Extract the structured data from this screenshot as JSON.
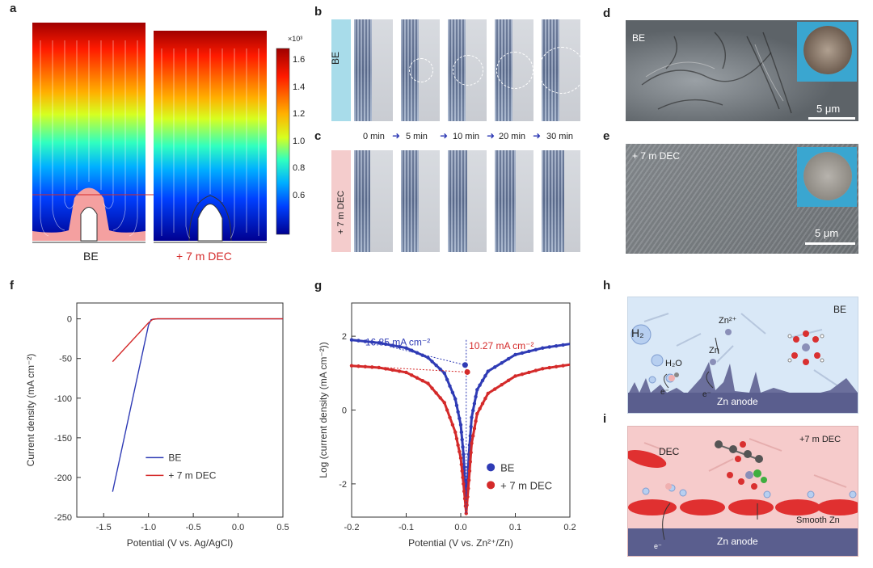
{
  "panels": {
    "a": "a",
    "b": "b",
    "c": "c",
    "d": "d",
    "e": "e",
    "f": "f",
    "g": "g",
    "h": "h",
    "i": "i"
  },
  "panel_a": {
    "colorbar_multiplier": "×10³",
    "colorbar_ticks": [
      "1.6",
      "1.4",
      "1.2",
      "1.0",
      "0.8",
      "0.6"
    ],
    "labels": {
      "left": "BE",
      "right": "+ 7 m DEC"
    },
    "colors": {
      "be": "#2f3bb5",
      "dec": "#d42a2a"
    }
  },
  "panel_bc": {
    "row_b_label": "BE",
    "row_c_label": "+ 7 m DEC",
    "times": [
      "0 min",
      "5 min",
      "10 min",
      "20 min",
      "30 min"
    ]
  },
  "panel_de": {
    "d_label": "BE",
    "e_label": "+ 7 m DEC",
    "scale_d": "5 μm",
    "scale_e": "5 μm"
  },
  "chart_data": [
    {
      "type": "line",
      "panel": "f",
      "xlabel": "Potential (V vs. Ag/AgCl)",
      "ylabel": "Current density (mA cm⁻²)",
      "xlim": [
        -1.8,
        0.5
      ],
      "ylim": [
        -250,
        20
      ],
      "xticks": [
        "-1.5",
        "-1.0",
        "-0.5",
        "0.0",
        "0.5"
      ],
      "yticks": [
        "0",
        "-50",
        "-100",
        "-150",
        "-200",
        "-250"
      ],
      "legend_position": "bottom-right",
      "series": [
        {
          "name": "BE",
          "color": "#2f3bb5",
          "points": [
            [
              -1.4,
              -218
            ],
            [
              -1.0,
              -8
            ],
            [
              -0.97,
              -1
            ],
            [
              -0.9,
              0
            ],
            [
              0.5,
              0
            ]
          ]
        },
        {
          "name": "+ 7 m DEC",
          "color": "#d42a2a",
          "points": [
            [
              -1.4,
              -54
            ],
            [
              -1.0,
              -5
            ],
            [
              -0.95,
              -0.5
            ],
            [
              -0.9,
              0
            ],
            [
              0.5,
              0
            ]
          ]
        }
      ]
    },
    {
      "type": "line",
      "panel": "g",
      "xlabel": "Potential (V vs. Zn²⁺/Zn)",
      "ylabel": "Log (current density (mA cm⁻²))",
      "xlim": [
        -0.2,
        0.2
      ],
      "ylim": [
        -2.9,
        2.9
      ],
      "xticks": [
        "-0.2",
        "-0.1",
        "0.0",
        "0.1",
        "0.2"
      ],
      "yticks": [
        "2",
        "0",
        "-2"
      ],
      "legend_position": "bottom-right",
      "annotations": [
        {
          "text": "16.85 mA cm⁻²",
          "color": "#2f3bb5"
        },
        {
          "text": "10.27 mA cm⁻²",
          "color": "#d42a2a"
        }
      ],
      "series": [
        {
          "name": "BE",
          "color": "#2f3bb5",
          "points": [
            [
              -0.2,
              1.9
            ],
            [
              -0.15,
              1.82
            ],
            [
              -0.1,
              1.68
            ],
            [
              -0.06,
              1.42
            ],
            [
              -0.03,
              1.0
            ],
            [
              -0.01,
              0.3
            ],
            [
              0.0,
              -0.4
            ],
            [
              0.005,
              -1.2
            ],
            [
              0.01,
              -2.6
            ],
            [
              0.015,
              -1.2
            ],
            [
              0.02,
              -0.2
            ],
            [
              0.03,
              0.55
            ],
            [
              0.05,
              1.05
            ],
            [
              0.1,
              1.5
            ],
            [
              0.15,
              1.68
            ],
            [
              0.2,
              1.79
            ]
          ]
        },
        {
          "name": "+ 7 m DEC",
          "color": "#d42a2a",
          "points": [
            [
              -0.2,
              1.2
            ],
            [
              -0.15,
              1.15
            ],
            [
              -0.1,
              1.02
            ],
            [
              -0.06,
              0.72
            ],
            [
              -0.03,
              0.2
            ],
            [
              -0.01,
              -0.6
            ],
            [
              0.0,
              -1.3
            ],
            [
              0.005,
              -2.0
            ],
            [
              0.01,
              -2.8
            ],
            [
              0.015,
              -1.9
            ],
            [
              0.02,
              -0.9
            ],
            [
              0.03,
              -0.1
            ],
            [
              0.05,
              0.45
            ],
            [
              0.1,
              0.92
            ],
            [
              0.15,
              1.12
            ],
            [
              0.2,
              1.23
            ]
          ]
        }
      ]
    }
  ],
  "panel_h": {
    "corner_label": "BE",
    "h2": "H₂",
    "h2o": "H₂O",
    "zn2": "Zn²⁺",
    "zn": "Zn",
    "electron": "e⁻",
    "anode": "Zn anode"
  },
  "panel_i": {
    "corner_label": "+7 m DEC",
    "dec": "DEC",
    "smooth": "Smooth Zn",
    "electron": "e⁻",
    "anode": "Zn anode"
  }
}
